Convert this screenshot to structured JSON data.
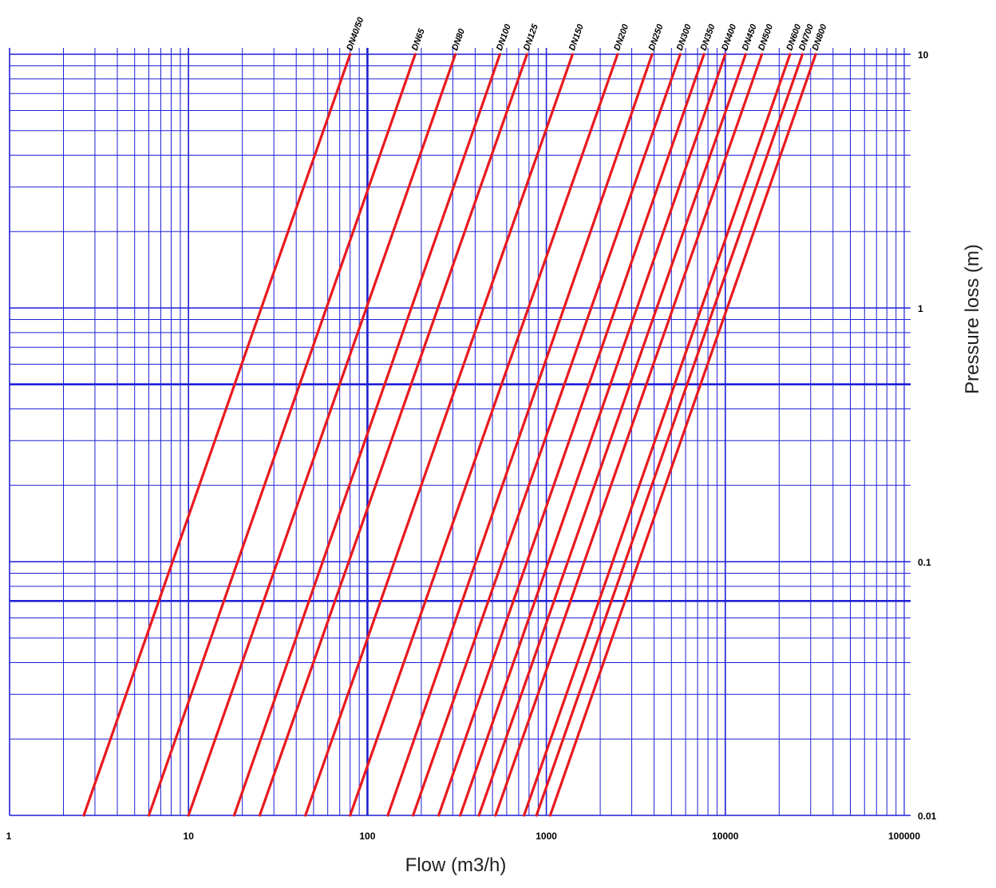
{
  "chart_data": {
    "type": "line",
    "title": "",
    "xlabel": "Flow (m3/h)",
    "ylabel": "Pressure loss (m)",
    "x_scale": "log",
    "y_scale": "log",
    "xlim": [
      1,
      100000
    ],
    "ylim": [
      0.01,
      10
    ],
    "x_ticks": [
      "1",
      "10",
      "100",
      "1000",
      "10000",
      "100000"
    ],
    "y_ticks": [
      "10",
      "1",
      "0.1",
      "0.01"
    ],
    "grid": true,
    "colors": {
      "grid": "#1f1fd6",
      "series": "#e8191e"
    },
    "series": [
      {
        "name": "DN40/50",
        "x": [
          2.6,
          80
        ],
        "y": [
          0.01,
          10
        ]
      },
      {
        "name": "DN65",
        "x": [
          6,
          185
        ],
        "y": [
          0.01,
          10
        ]
      },
      {
        "name": "DN80",
        "x": [
          10,
          310
        ],
        "y": [
          0.01,
          10
        ]
      },
      {
        "name": "DN100",
        "x": [
          18,
          550
        ],
        "y": [
          0.01,
          10
        ]
      },
      {
        "name": "DN125",
        "x": [
          25,
          780
        ],
        "y": [
          0.01,
          10
        ]
      },
      {
        "name": "DN150",
        "x": [
          45,
          1400
        ],
        "y": [
          0.01,
          10
        ]
      },
      {
        "name": "DN200",
        "x": [
          80,
          2500
        ],
        "y": [
          0.01,
          10
        ]
      },
      {
        "name": "DN250",
        "x": [
          130,
          3900
        ],
        "y": [
          0.01,
          10
        ]
      },
      {
        "name": "DN300",
        "x": [
          180,
          5600
        ],
        "y": [
          0.01,
          10
        ]
      },
      {
        "name": "DN350",
        "x": [
          250,
          7600
        ],
        "y": [
          0.01,
          10
        ]
      },
      {
        "name": "DN400",
        "x": [
          330,
          10000
        ],
        "y": [
          0.01,
          10
        ]
      },
      {
        "name": "DN450",
        "x": [
          420,
          13000
        ],
        "y": [
          0.01,
          10
        ]
      },
      {
        "name": "DN500",
        "x": [
          520,
          16000
        ],
        "y": [
          0.01,
          10
        ]
      },
      {
        "name": "DN600",
        "x": [
          750,
          23000
        ],
        "y": [
          0.01,
          10
        ]
      },
      {
        "name": "DN700",
        "x": [
          880,
          27000
        ],
        "y": [
          0.01,
          10
        ]
      },
      {
        "name": "DN800",
        "x": [
          1050,
          32000
        ],
        "y": [
          0.01,
          10
        ]
      }
    ]
  }
}
